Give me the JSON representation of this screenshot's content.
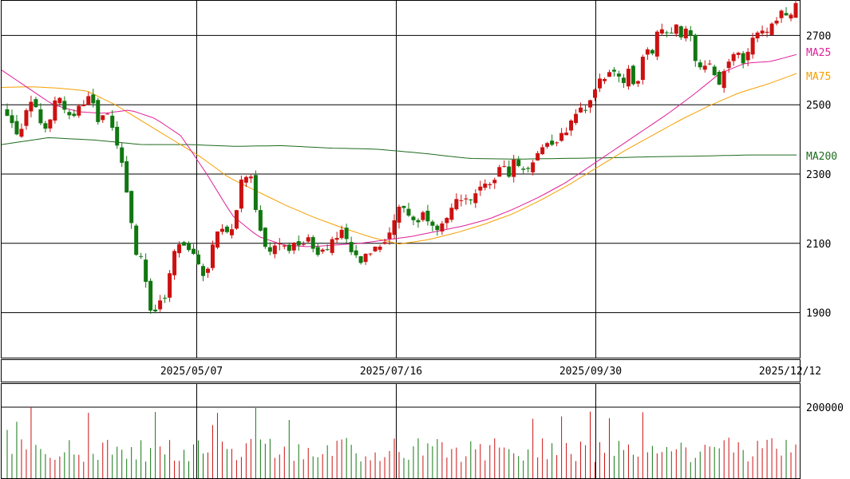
{
  "chart_data": [
    {
      "type": "candlestick",
      "title": "",
      "x_tick_labels": [
        "2025/05/07",
        "2025/07/16",
        "2025/09/30",
        "2025/12/12"
      ],
      "y_ticks": [
        1900,
        2100,
        2300,
        2500,
        2700
      ],
      "ylim": [
        1770,
        2800
      ],
      "grid": true,
      "legend": [
        {
          "name": "MA25",
          "color": "#e0209a"
        },
        {
          "name": "MA75",
          "color": "#f5a000"
        },
        {
          "name": "MA200",
          "color": "#1e6b1e"
        }
      ],
      "colors": {
        "up": "#cc1111",
        "down": "#117711",
        "ma25": "#e0209a",
        "ma75": "#f5a000",
        "ma200": "#1e6b1e"
      },
      "close_path": [
        2480,
        2415,
        2440,
        2500,
        2475,
        2425,
        2490,
        2520,
        2455,
        2470,
        2510,
        2525,
        2440,
        2500,
        2410,
        2335,
        2220,
        2080,
        2040,
        1880,
        1920,
        1945,
        2075,
        2090,
        2080,
        2060,
        2010,
        2075,
        2150,
        2135,
        2165,
        2290,
        2315,
        2180,
        2085,
        2075,
        2100,
        2080,
        2090,
        2110,
        2100,
        2080,
        2095,
        2100,
        2140,
        2085,
        2055,
        2045,
        2085,
        2100,
        2120,
        2160,
        2220,
        2180,
        2160,
        2190,
        2165,
        2145,
        2160,
        2210,
        2240,
        2205,
        2240,
        2265,
        2280,
        2320,
        2300,
        2340,
        2310,
        2330,
        2365,
        2385,
        2395,
        2410,
        2430,
        2480,
        2490,
        2520,
        2560,
        2580,
        2600,
        2555,
        2610,
        2530,
        2650,
        2645,
        2720,
        2710,
        2730,
        2690,
        2720,
        2610,
        2625,
        2600,
        2565,
        2630,
        2660,
        2630,
        2680,
        2720,
        2705,
        2740,
        2765,
        2760,
        2790
      ],
      "ma25_path": [
        2600,
        2550,
        2500,
        2480,
        2475,
        2485,
        2460,
        2410,
        2300,
        2180,
        2120,
        2095,
        2090,
        2095,
        2100,
        2110,
        2120,
        2135,
        2150,
        2170,
        2200,
        2235,
        2275,
        2325,
        2375,
        2425,
        2475,
        2530,
        2590,
        2620,
        2625,
        2645
      ],
      "ma75_path": [
        2550,
        2552,
        2548,
        2540,
        2500,
        2450,
        2400,
        2350,
        2290,
        2250,
        2210,
        2175,
        2145,
        2118,
        2098,
        2110,
        2130,
        2155,
        2185,
        2225,
        2270,
        2320,
        2370,
        2415,
        2460,
        2500,
        2535,
        2560,
        2590
      ],
      "ma200_path": [
        2385,
        2405,
        2398,
        2385,
        2385,
        2380,
        2382,
        2375,
        2372,
        2360,
        2345,
        2343,
        2345,
        2347,
        2350,
        2352,
        2355,
        2355
      ],
      "volume": {
        "y_ticks": [
          200000
        ],
        "ylim": [
          0,
          265000
        ]
      }
    }
  ]
}
